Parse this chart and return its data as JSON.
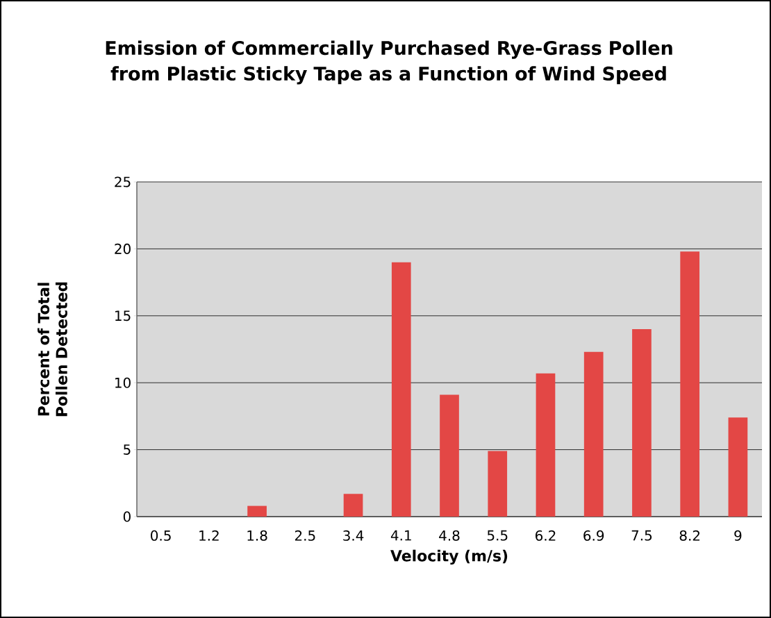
{
  "chart_data": {
    "type": "bar",
    "title": "Emission of Commercially Purchased Rye-Grass Pollen from Plastic Sticky Tape as a Function of Wind Speed",
    "xlabel": "Velocity (m/s)",
    "ylabel": "Percent of Total Pollen Detected",
    "categories": [
      "0.5",
      "1.2",
      "1.8",
      "2.5",
      "3.4",
      "4.1",
      "4.8",
      "5.5",
      "6.2",
      "6.9",
      "7.5",
      "8.2",
      "9"
    ],
    "values": [
      0,
      0,
      0.8,
      0,
      1.7,
      19.0,
      9.1,
      4.9,
      10.7,
      12.3,
      14.0,
      19.8,
      7.4
    ],
    "color": "#e34745",
    "ylim": [
      0,
      25
    ],
    "yticks": [
      0,
      5,
      10,
      15,
      20,
      25
    ],
    "grid": "y"
  }
}
